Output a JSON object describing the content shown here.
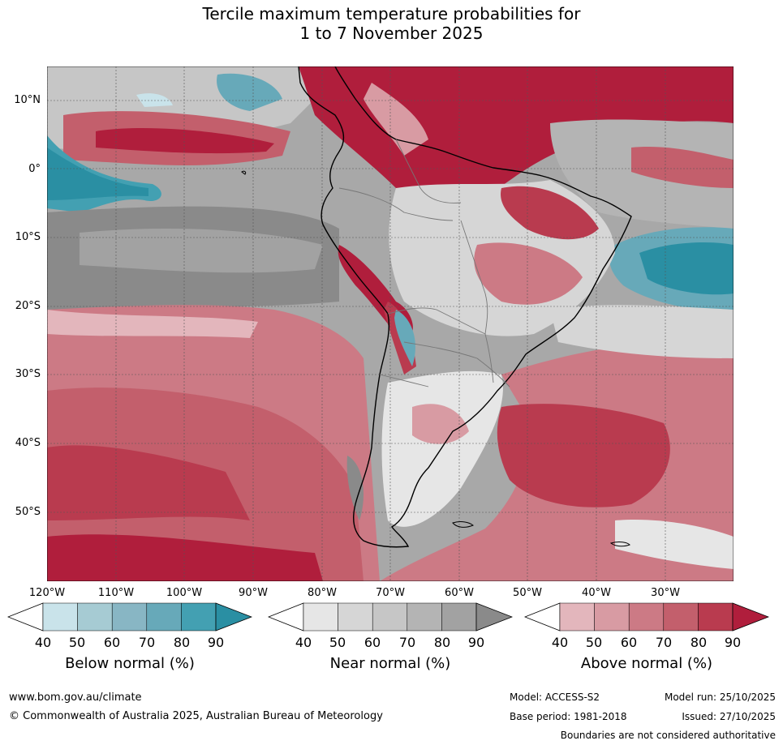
{
  "title_line1": "Tercile maximum temperature probabilities for",
  "title_line2": "1 to 7 November 2025",
  "lat_labels": [
    "10°N",
    "0°",
    "10°S",
    "20°S",
    "30°S",
    "40°S",
    "50°S"
  ],
  "lon_labels": [
    "120°W",
    "110°W",
    "100°W",
    "90°W",
    "80°W",
    "70°W",
    "60°W",
    "50°W",
    "40°W",
    "30°W"
  ],
  "colorbars": [
    {
      "label": "Below normal (%)",
      "ticks": [
        "40",
        "50",
        "60",
        "70",
        "80",
        "90"
      ],
      "colors": [
        "#ffffff",
        "#c9e3ea",
        "#a6cbd3",
        "#88b6c4",
        "#67a9b9",
        "#43a0b2",
        "#2a8fa3"
      ]
    },
    {
      "label": "Near normal (%)",
      "ticks": [
        "40",
        "50",
        "60",
        "70",
        "80",
        "90"
      ],
      "colors": [
        "#ffffff",
        "#e6e6e6",
        "#d6d6d6",
        "#c6c6c6",
        "#b4b4b4",
        "#a2a2a2",
        "#8a8a8a"
      ]
    },
    {
      "label": "Above normal (%)",
      "ticks": [
        "40",
        "50",
        "60",
        "70",
        "80",
        "90"
      ],
      "colors": [
        "#ffffff",
        "#e3b6bc",
        "#d89ba3",
        "#cc7a85",
        "#c35f6c",
        "#b93b4f",
        "#b01e3c"
      ]
    }
  ],
  "footer": {
    "website": "www.bom.gov.au/climate",
    "copyright": "© Commonwealth of Australia 2025, Australian Bureau of Meteorology",
    "model": "Model: ACCESS-S2",
    "model_run": "Model run: 25/10/2025",
    "base_period": "Base period: 1981-2018",
    "issued": "Issued: 27/10/2025",
    "disclaimer": "Boundaries are not considered authoritative"
  }
}
